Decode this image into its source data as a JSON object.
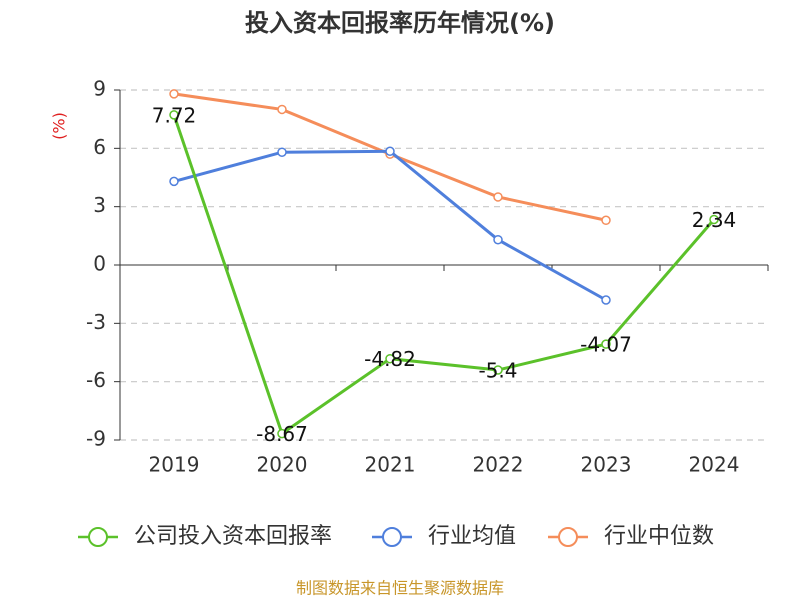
{
  "chart_data": {
    "type": "line",
    "title": "投入资本回报率历年情况(%)",
    "y_label": "(%)",
    "categories": [
      "2019",
      "2020",
      "2021",
      "2022",
      "2023",
      "2024"
    ],
    "series": [
      {
        "name": "公司投入资本回报率",
        "color": "#5bc12a",
        "values": [
          7.72,
          -8.67,
          -4.82,
          -5.4,
          -4.07,
          2.34
        ],
        "data_labels": true
      },
      {
        "name": "行业均值",
        "color": "#4f7fdc",
        "values": [
          4.3,
          5.8,
          5.85,
          1.3,
          -1.8,
          null
        ]
      },
      {
        "name": "行业中位数",
        "color": "#f58d5a",
        "values": [
          8.8,
          8.0,
          5.7,
          3.5,
          2.3,
          null
        ]
      }
    ],
    "ylim": [
      -9,
      9
    ],
    "yticks": [
      9,
      6,
      3,
      0,
      -3,
      -6,
      -9
    ],
    "grid": true,
    "legend": "bottom",
    "source": "制图数据来自恒生聚源数据库"
  }
}
